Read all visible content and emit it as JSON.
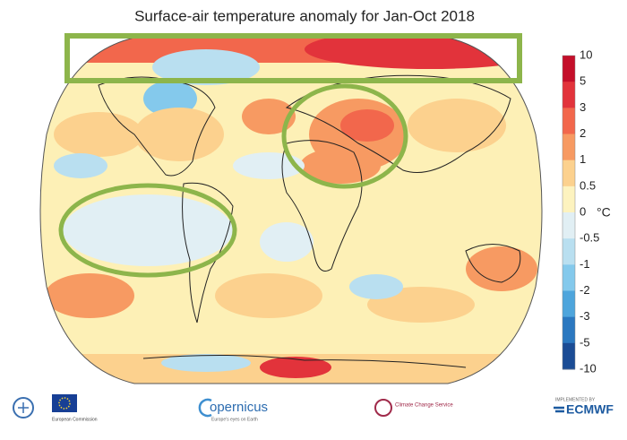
{
  "title": "Surface-air temperature anomaly for Jan-Oct 2018",
  "colorbar": {
    "unit": "°C",
    "labels": [
      10,
      5,
      3,
      2,
      1,
      0.5,
      0,
      -0.5,
      -1,
      -2,
      -3,
      -5,
      -10
    ],
    "colors": [
      "#c40f2a",
      "#e2333b",
      "#f2674c",
      "#f79a62",
      "#fcd18e",
      "#fdf3bf",
      "#e1eff4",
      "#b9dff0",
      "#84c9ec",
      "#4ea5dc",
      "#2b78c0",
      "#1b4c95"
    ]
  },
  "footer": {
    "eu": "European Commission",
    "copernicus": "opernicus",
    "copernicus_tagline": "Europe's eyes on Earth",
    "ccs": "Climate Change Service",
    "ecmwf_tagline": "IMPLEMENTED BY",
    "ecmwf": "ECMWF"
  }
}
